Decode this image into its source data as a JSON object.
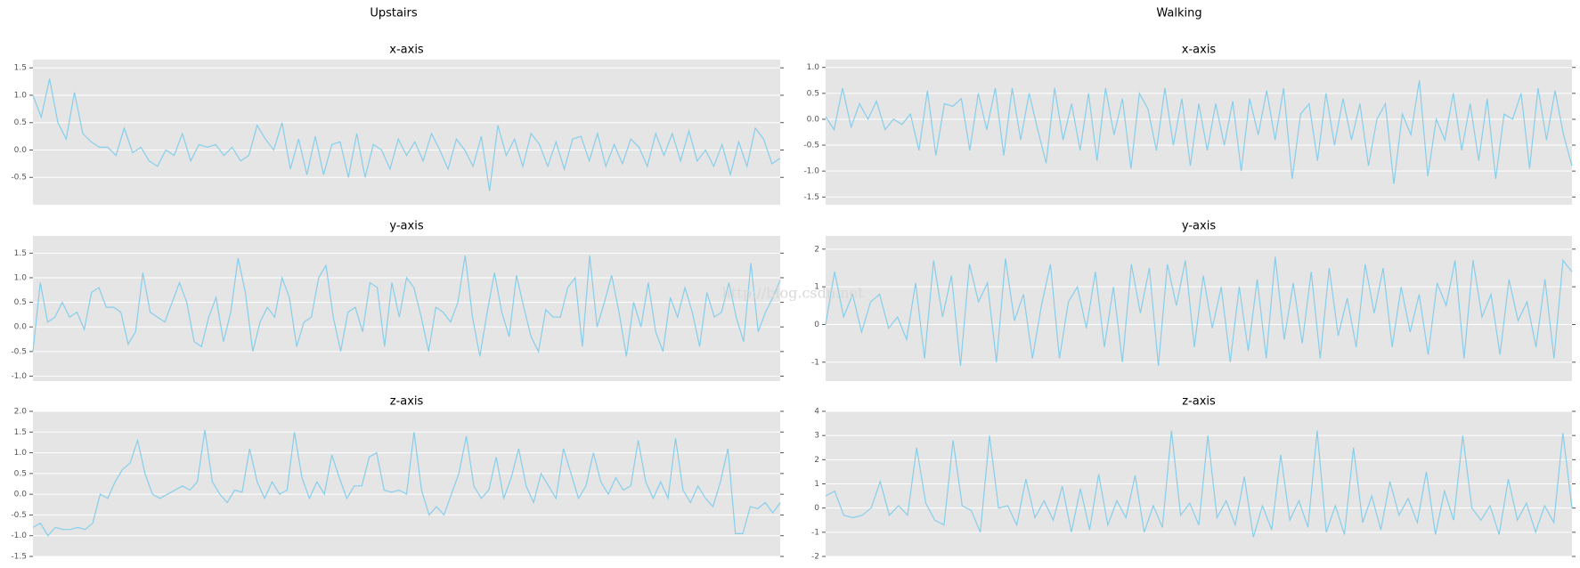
{
  "column_titles": [
    "Upstairs",
    "Walking"
  ],
  "watermark": "http://blog.csdn.net",
  "chart_data": [
    {
      "type": "line",
      "title": "x-axis",
      "color": "#87ceeb",
      "grid": true,
      "ylim": [
        -1.0,
        1.65
      ],
      "yticks": [
        -0.5,
        {
          "value": 0,
          "label": "0.0"
        },
        0.5,
        {
          "value": 1,
          "label": "1.0"
        },
        1.5
      ],
      "values": [
        1.0,
        0.6,
        1.3,
        0.5,
        0.2,
        1.05,
        0.3,
        0.15,
        0.05,
        0.05,
        -0.1,
        0.4,
        -0.05,
        0.05,
        -0.2,
        -0.3,
        0.0,
        -0.1,
        0.3,
        -0.2,
        0.1,
        0.05,
        0.1,
        -0.1,
        0.05,
        -0.2,
        -0.1,
        0.45,
        0.2,
        0.0,
        0.5,
        -0.35,
        0.2,
        -0.45,
        0.25,
        -0.45,
        0.1,
        0.15,
        -0.5,
        0.3,
        -0.5,
        0.1,
        0.0,
        -0.35,
        0.2,
        -0.1,
        0.15,
        -0.2,
        0.3,
        0.0,
        -0.35,
        0.2,
        0.0,
        -0.3,
        0.25,
        -0.75,
        0.45,
        -0.1,
        0.2,
        -0.3,
        0.3,
        0.1,
        -0.3,
        0.15,
        -0.35,
        0.2,
        0.25,
        -0.2,
        0.3,
        -0.3,
        0.1,
        -0.25,
        0.2,
        0.05,
        -0.3,
        0.3,
        -0.1,
        0.3,
        -0.2,
        0.35,
        -0.2,
        0.0,
        -0.3,
        0.1,
        -0.45,
        0.15,
        -0.3,
        0.4,
        0.2,
        -0.25,
        -0.15
      ]
    },
    {
      "type": "line",
      "title": "y-axis",
      "color": "#87ceeb",
      "grid": true,
      "ylim": [
        -1.1,
        1.85
      ],
      "yticks": [
        {
          "value": -1,
          "label": "-1.0"
        },
        -0.5,
        {
          "value": 0,
          "label": "0.0"
        },
        0.5,
        {
          "value": 1,
          "label": "1.0"
        },
        1.5
      ],
      "values": [
        -0.5,
        0.9,
        0.1,
        0.2,
        0.5,
        0.2,
        0.3,
        -0.05,
        0.7,
        0.8,
        0.4,
        0.4,
        0.3,
        -0.35,
        -0.1,
        1.1,
        0.3,
        0.2,
        0.1,
        0.5,
        0.9,
        0.5,
        -0.3,
        -0.4,
        0.2,
        0.6,
        -0.3,
        0.3,
        1.4,
        0.7,
        -0.5,
        0.1,
        0.4,
        0.2,
        1.0,
        0.6,
        -0.4,
        0.1,
        0.2,
        1.0,
        1.25,
        0.2,
        -0.5,
        0.3,
        0.4,
        -0.1,
        0.9,
        0.8,
        -0.4,
        0.9,
        0.2,
        1.0,
        0.8,
        0.2,
        -0.5,
        0.4,
        0.3,
        0.1,
        0.5,
        1.45,
        0.2,
        -0.6,
        0.3,
        1.1,
        0.3,
        -0.2,
        1.05,
        0.4,
        -0.2,
        -0.5,
        0.35,
        0.2,
        0.2,
        0.8,
        1.0,
        -0.4,
        1.45,
        0.0,
        0.5,
        1.05,
        0.3,
        -0.6,
        0.5,
        0.0,
        0.9,
        -0.1,
        -0.5,
        0.6,
        0.2,
        0.8,
        0.3,
        -0.4,
        0.7,
        0.2,
        0.3,
        0.9,
        0.2,
        -0.3,
        1.3,
        -0.1,
        0.3,
        0.6,
        0.95
      ]
    },
    {
      "type": "line",
      "title": "z-axis",
      "color": "#87ceeb",
      "grid": true,
      "ylim": [
        -1.5,
        2.0
      ],
      "yticks": [
        -1.5,
        {
          "value": -1,
          "label": "-1.0"
        },
        -0.5,
        {
          "value": 0,
          "label": "0.0"
        },
        0.5,
        {
          "value": 1,
          "label": "1.0"
        },
        1.5,
        {
          "value": 2,
          "label": "2.0"
        }
      ],
      "values": [
        -0.8,
        -0.7,
        -1.0,
        -0.8,
        -0.85,
        -0.85,
        -0.8,
        -0.85,
        -0.7,
        0.0,
        -0.1,
        0.3,
        0.6,
        0.75,
        1.3,
        0.5,
        0.0,
        -0.1,
        0.0,
        0.1,
        0.2,
        0.1,
        0.3,
        1.55,
        0.3,
        0.0,
        -0.2,
        0.1,
        0.05,
        1.1,
        0.3,
        -0.1,
        0.3,
        0.0,
        0.1,
        1.5,
        0.4,
        -0.1,
        0.3,
        0.0,
        0.95,
        0.4,
        -0.1,
        0.2,
        0.2,
        0.9,
        1.0,
        0.1,
        0.05,
        0.1,
        0.0,
        1.5,
        0.1,
        -0.5,
        -0.3,
        -0.5,
        0.0,
        0.5,
        1.4,
        0.2,
        -0.1,
        0.1,
        0.9,
        -0.1,
        0.4,
        1.1,
        0.2,
        -0.2,
        0.5,
        0.2,
        -0.1,
        1.1,
        0.5,
        -0.1,
        0.2,
        1.0,
        0.3,
        0.0,
        0.4,
        0.1,
        0.2,
        1.3,
        0.3,
        -0.1,
        0.3,
        -0.1,
        1.35,
        0.1,
        -0.2,
        0.2,
        -0.1,
        -0.3,
        0.3,
        1.1,
        -0.95,
        -0.95,
        -0.3,
        -0.35,
        -0.2,
        -0.45,
        -0.2
      ]
    },
    {
      "type": "line",
      "title": "x-axis",
      "color": "#87ceeb",
      "grid": true,
      "ylim": [
        -1.65,
        1.15
      ],
      "yticks": [
        -1.5,
        {
          "value": -1,
          "label": "-1.0"
        },
        -0.5,
        {
          "value": 0,
          "label": "0.0"
        },
        0.5,
        {
          "value": 1,
          "label": "1.0"
        }
      ],
      "values": [
        0.05,
        -0.2,
        0.6,
        -0.15,
        0.3,
        0.0,
        0.35,
        -0.2,
        0.0,
        -0.1,
        0.1,
        -0.6,
        0.55,
        -0.7,
        0.3,
        0.25,
        0.4,
        -0.6,
        0.5,
        -0.2,
        0.6,
        -0.7,
        0.6,
        -0.4,
        0.5,
        -0.2,
        -0.85,
        0.6,
        -0.4,
        0.3,
        -0.6,
        0.5,
        -0.8,
        0.6,
        -0.3,
        0.4,
        -0.95,
        0.5,
        0.2,
        -0.6,
        0.6,
        -0.5,
        0.4,
        -0.9,
        0.3,
        -0.6,
        0.3,
        -0.5,
        0.35,
        -1.0,
        0.4,
        -0.3,
        0.55,
        -0.4,
        0.6,
        -1.15,
        0.1,
        0.3,
        -0.8,
        0.5,
        -0.5,
        0.4,
        -0.4,
        0.3,
        -0.9,
        0.0,
        0.3,
        -1.25,
        0.1,
        -0.3,
        0.75,
        -1.1,
        0.0,
        -0.4,
        0.5,
        -0.6,
        0.3,
        -0.8,
        0.4,
        -1.15,
        0.1,
        0.0,
        0.5,
        -0.95,
        0.6,
        -0.4,
        0.55,
        -0.3,
        -0.9
      ]
    },
    {
      "type": "line",
      "title": "y-axis",
      "color": "#87ceeb",
      "grid": true,
      "ylim": [
        -1.5,
        2.35
      ],
      "yticks": [
        -1,
        0,
        1,
        2
      ],
      "values": [
        0.0,
        1.4,
        0.2,
        0.8,
        -0.2,
        0.6,
        0.8,
        -0.1,
        0.2,
        -0.4,
        1.1,
        -0.9,
        1.7,
        0.2,
        1.3,
        -1.1,
        1.6,
        0.6,
        1.1,
        -1.0,
        1.75,
        0.1,
        0.8,
        -0.9,
        0.5,
        1.6,
        -0.9,
        0.6,
        1.0,
        -0.1,
        1.4,
        -0.6,
        1.0,
        -1.0,
        1.6,
        0.3,
        1.5,
        -1.1,
        1.6,
        0.5,
        1.7,
        -0.6,
        1.3,
        -0.1,
        1.0,
        -1.0,
        1.0,
        -0.7,
        1.2,
        -0.9,
        1.8,
        -0.4,
        1.1,
        -0.5,
        1.4,
        -0.9,
        1.5,
        -0.3,
        0.7,
        -0.6,
        1.6,
        0.3,
        1.5,
        -0.6,
        1.0,
        -0.2,
        0.8,
        -0.8,
        1.1,
        0.5,
        1.7,
        -0.9,
        1.7,
        0.2,
        0.8,
        -0.8,
        1.2,
        0.1,
        0.6,
        -0.6,
        1.2,
        -0.9,
        1.7,
        1.4
      ]
    },
    {
      "type": "line",
      "title": "z-axis",
      "color": "#87ceeb",
      "grid": true,
      "ylim": [
        -2,
        4
      ],
      "yticks": [
        -2,
        -1,
        0,
        1,
        2,
        3,
        4
      ],
      "values": [
        0.5,
        0.7,
        -0.3,
        -0.4,
        -0.3,
        0.0,
        1.1,
        -0.3,
        0.1,
        -0.3,
        2.5,
        0.2,
        -0.5,
        -0.7,
        2.8,
        0.1,
        -0.1,
        -1.0,
        3.0,
        0.0,
        0.1,
        -0.7,
        1.2,
        -0.4,
        0.3,
        -0.5,
        0.9,
        -1.0,
        0.8,
        -0.9,
        1.4,
        -0.7,
        0.3,
        -0.4,
        1.35,
        -1.0,
        0.1,
        -0.8,
        3.2,
        -0.3,
        0.2,
        -0.7,
        3.0,
        -0.4,
        0.3,
        -0.7,
        1.3,
        -1.2,
        0.1,
        -0.9,
        2.2,
        -0.5,
        0.3,
        -0.8,
        3.2,
        -1.0,
        0.1,
        -1.1,
        2.5,
        -0.6,
        0.5,
        -0.9,
        1.1,
        -0.3,
        0.4,
        -0.6,
        1.5,
        -1.1,
        0.7,
        -0.5,
        3.0,
        0.0,
        -0.5,
        0.1,
        -1.1,
        1.2,
        -0.5,
        0.2,
        -1.0,
        0.1,
        -0.6,
        3.1,
        0.0
      ]
    }
  ]
}
